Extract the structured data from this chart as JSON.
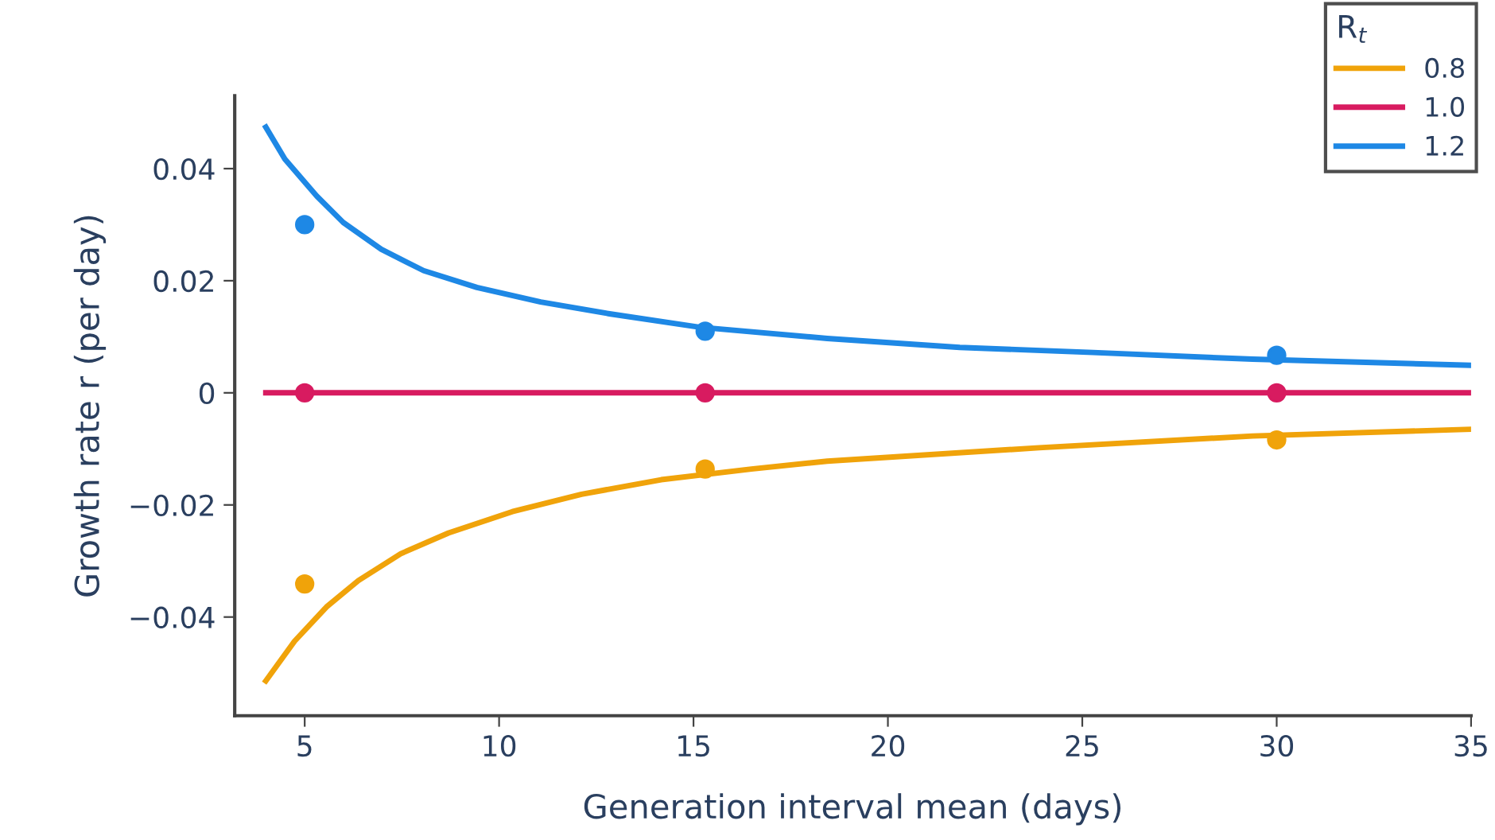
{
  "chart_data": {
    "type": "line",
    "xlabel": "Generation interval mean (days)",
    "ylabel": "Growth rate r (per day)",
    "legend_title": "R$_{t}$",
    "legend": "top right",
    "grid": false,
    "line_style": "solid",
    "xlim": [
      3.2,
      35
    ],
    "ylim": [
      -0.0576,
      0.053
    ],
    "xticks": [
      5,
      10,
      15,
      20,
      25,
      30,
      35
    ],
    "yticks": [
      {
        "value": -0.04,
        "label": "−0.04"
      },
      {
        "value": -0.02,
        "label": "−0.02"
      },
      0,
      {
        "value": 0.02,
        "label": "0.02"
      },
      {
        "value": 0.04,
        "label": "0.04"
      }
    ],
    "series": [
      {
        "name": "0.8",
        "color": "#f0a30a",
        "marker": "none",
        "x": [
          4.0,
          4.74,
          5.56,
          6.38,
          7.47,
          8.7,
          10.34,
          12.12,
          14.17,
          16.49,
          18.44,
          23.89,
          29.38,
          35.0
        ],
        "values": [
          -0.0514,
          -0.0443,
          -0.0382,
          -0.0335,
          -0.0287,
          -0.025,
          -0.0212,
          -0.0181,
          -0.0155,
          -0.0136,
          -0.0122,
          -0.0098,
          -0.0077,
          -0.0065
        ]
      },
      {
        "name": "1.0",
        "color": "#d81b60",
        "marker": "none",
        "x": [
          4.0,
          35.0
        ],
        "values": [
          0,
          0
        ]
      },
      {
        "name": "1.2",
        "color": "#1e88e5",
        "marker": "none",
        "x": [
          4.0,
          4.49,
          5.31,
          5.99,
          6.97,
          8.06,
          9.43,
          11.07,
          12.84,
          15.16,
          18.44,
          21.85,
          25.28,
          29.38,
          35.0
        ],
        "values": [
          0.0474,
          0.0417,
          0.0351,
          0.0304,
          0.0256,
          0.0218,
          0.0188,
          0.0162,
          0.0141,
          0.0117,
          0.0097,
          0.0081,
          0.0072,
          0.006,
          0.0049
        ]
      },
      {
        "color": "#f0a30a",
        "type": "scatter",
        "marker": "circle",
        "x": [
          5,
          15.3,
          30
        ],
        "values": [
          -0.0341,
          -0.0136,
          -0.0084
        ]
      },
      {
        "color": "#d81b60",
        "type": "scatter",
        "marker": "circle",
        "x": [
          5,
          15.3,
          30
        ],
        "values": [
          0,
          0,
          0
        ]
      },
      {
        "color": "#1e88e5",
        "type": "scatter",
        "marker": "circle",
        "x": [
          5,
          15.3,
          30
        ],
        "values": [
          0.03,
          0.011,
          0.0067
        ]
      }
    ]
  }
}
